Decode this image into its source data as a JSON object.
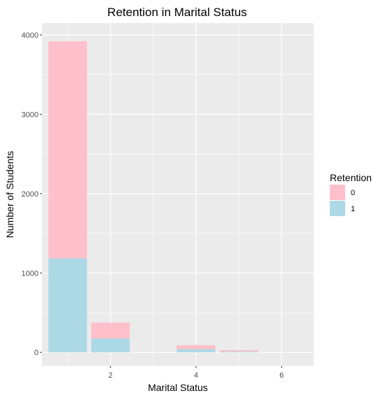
{
  "chart_data": {
    "type": "bar",
    "stacked": true,
    "title": "Retention in Marital Status",
    "xlabel": "Marital Status",
    "ylabel": "Number of Students",
    "x": [
      1,
      2,
      4,
      5
    ],
    "xlim": [
      0.4,
      6.75
    ],
    "ylim": [
      -170,
      4150
    ],
    "xticks": [
      2,
      4,
      6
    ],
    "yticks": [
      0,
      1000,
      2000,
      3000,
      4000
    ],
    "bar_width": 0.9,
    "grid": true,
    "legend_position": "right",
    "legend_title": "Retention",
    "series": [
      {
        "name": "1",
        "color": "#add8e6",
        "values": [
          1185,
          175,
          40,
          10
        ]
      },
      {
        "name": "0",
        "color": "#ffc0cb",
        "values": [
          2735,
          200,
          50,
          18
        ]
      }
    ],
    "legend_order": [
      "0",
      "1"
    ],
    "panel_color": "#ebebeb",
    "grid_color": "#ffffff"
  }
}
